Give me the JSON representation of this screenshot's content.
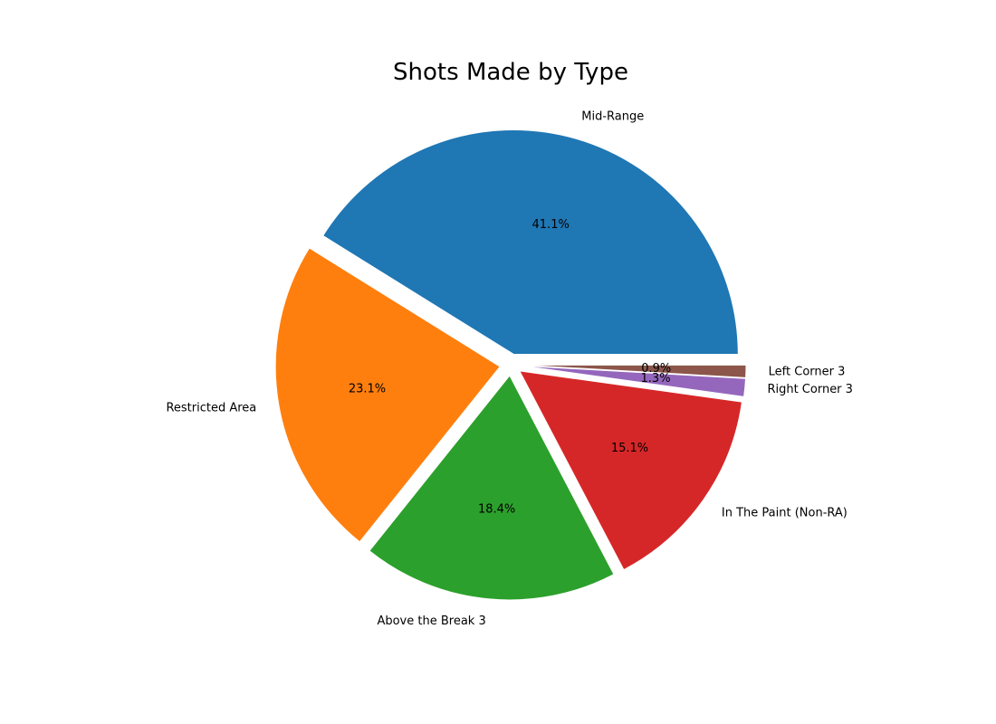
{
  "chart_data": {
    "type": "pie",
    "title": "Shots Made by Type",
    "categories": [
      "Mid-Range",
      "Restricted Area",
      "Above the Break 3",
      "In The Paint (Non-RA)",
      "Right Corner 3",
      "Left Corner 3"
    ],
    "values": [
      41.1,
      23.1,
      18.4,
      15.1,
      1.3,
      0.9
    ],
    "value_labels": [
      "41.1%",
      "23.1%",
      "18.4%",
      "15.1%",
      "1.3%",
      "0.9%"
    ],
    "colors": [
      "#1f77b4",
      "#ff7f0e",
      "#2ca02c",
      "#d62728",
      "#9467bd",
      "#8c564b"
    ],
    "start_angle_deg": 0,
    "direction": "counterclockwise",
    "exploded": true,
    "legend": "none"
  }
}
